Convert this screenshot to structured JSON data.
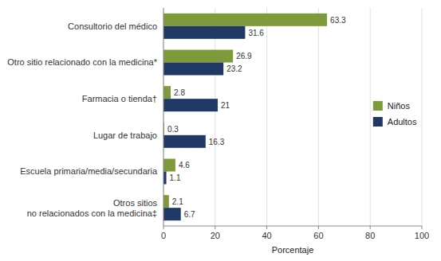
{
  "chart_data": {
    "type": "bar",
    "orientation": "horizontal",
    "categories": [
      "Otros sitios\nno relacionados con la medicina‡",
      "Escuela primaria/media/secundaria",
      "Lugar de trabajo",
      "Farmacia o tienda†",
      "Otro sitio relacionado con la medicina*",
      "Consultorio del médico"
    ],
    "series": [
      {
        "name": "Niños",
        "color": "#7F9A3A",
        "values": [
          2.1,
          4.6,
          0.3,
          2.8,
          26.9,
          63.3
        ]
      },
      {
        "name": "Adultos",
        "color": "#1F3864",
        "values": [
          6.7,
          1.1,
          16.3,
          21.0,
          23.2,
          31.6
        ]
      }
    ],
    "xlabel": "Porcentaje",
    "xlim": [
      0,
      100
    ],
    "xticks": [
      0,
      20,
      40,
      60,
      80,
      100
    ],
    "grid": true,
    "legend": "right",
    "data_labels": true
  }
}
